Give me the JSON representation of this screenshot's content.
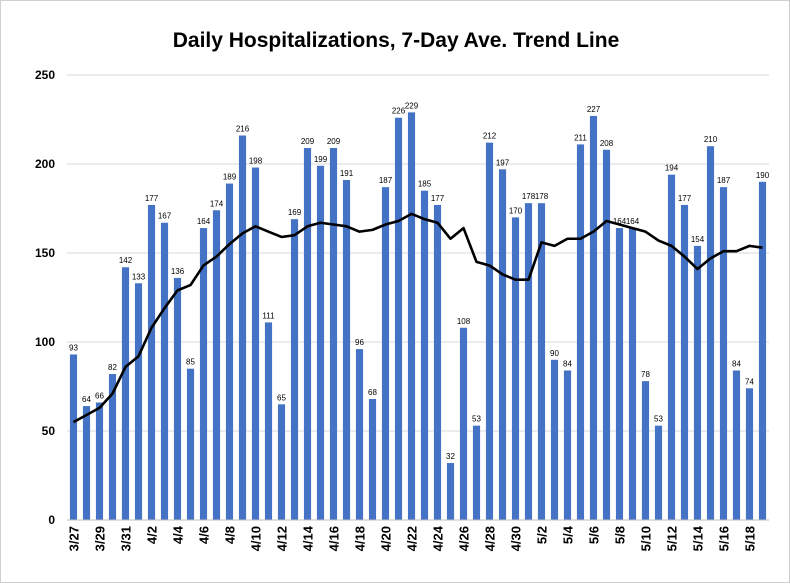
{
  "chart_data": {
    "type": "bar",
    "title": "Daily Hospitalizations, 7-Day Ave. Trend Line",
    "xlabel": "",
    "ylabel": "",
    "ylim": [
      0,
      250
    ],
    "yticks": [
      0,
      50,
      100,
      150,
      200,
      250
    ],
    "grid": true,
    "legend": "none",
    "bar_color": "#4472c4",
    "trend_color": "#000000",
    "categories": [
      "3/27",
      "3/28",
      "3/29",
      "3/30",
      "3/31",
      "4/1",
      "4/2",
      "4/3",
      "4/4",
      "4/5",
      "4/6",
      "4/7",
      "4/8",
      "4/9",
      "4/10",
      "4/11",
      "4/12",
      "4/13",
      "4/14",
      "4/15",
      "4/16",
      "4/17",
      "4/18",
      "4/19",
      "4/20",
      "4/21",
      "4/22",
      "4/23",
      "4/24",
      "4/25",
      "4/26",
      "4/27",
      "4/28",
      "4/29",
      "4/30",
      "5/1",
      "5/2",
      "5/3",
      "5/4",
      "5/5",
      "5/6",
      "5/7",
      "5/8",
      "5/9",
      "5/10",
      "5/11",
      "5/12",
      "5/13",
      "5/14",
      "5/15",
      "5/16",
      "5/17",
      "5/18",
      "5/19"
    ],
    "x_tick_labels": [
      "3/27",
      "3/29",
      "3/31",
      "4/2",
      "4/4",
      "4/6",
      "4/8",
      "4/10",
      "4/12",
      "4/14",
      "4/16",
      "4/18",
      "4/20",
      "4/22",
      "4/24",
      "4/26",
      "4/28",
      "4/30",
      "5/2",
      "5/4",
      "5/6",
      "5/8",
      "5/10",
      "5/12",
      "5/14",
      "5/16",
      "5/18"
    ],
    "series": [
      {
        "type": "bar",
        "values": [
          93,
          64,
          66,
          82,
          142,
          133,
          177,
          167,
          136,
          85,
          164,
          174,
          189,
          216,
          198,
          111,
          65,
          169,
          209,
          199,
          209,
          191,
          96,
          68,
          187,
          226,
          229,
          185,
          177,
          32,
          108,
          53,
          212,
          197,
          170,
          178,
          178,
          90,
          84,
          211,
          227,
          208,
          164,
          164,
          78,
          53,
          194,
          177,
          154,
          210,
          187,
          84,
          74,
          190
        ]
      },
      {
        "type": "line",
        "values": [
          55,
          59,
          63,
          71,
          86,
          92,
          108,
          119,
          129,
          132,
          143,
          148,
          155,
          161,
          165,
          162,
          159,
          160,
          165,
          167,
          166,
          165,
          162,
          163,
          166,
          168,
          172,
          169,
          167,
          158,
          164,
          145,
          143,
          138,
          135,
          135,
          156,
          154,
          158,
          158,
          162,
          168,
          166,
          164,
          162,
          157,
          154,
          148,
          141,
          147,
          151,
          151,
          154,
          153
        ]
      }
    ]
  }
}
